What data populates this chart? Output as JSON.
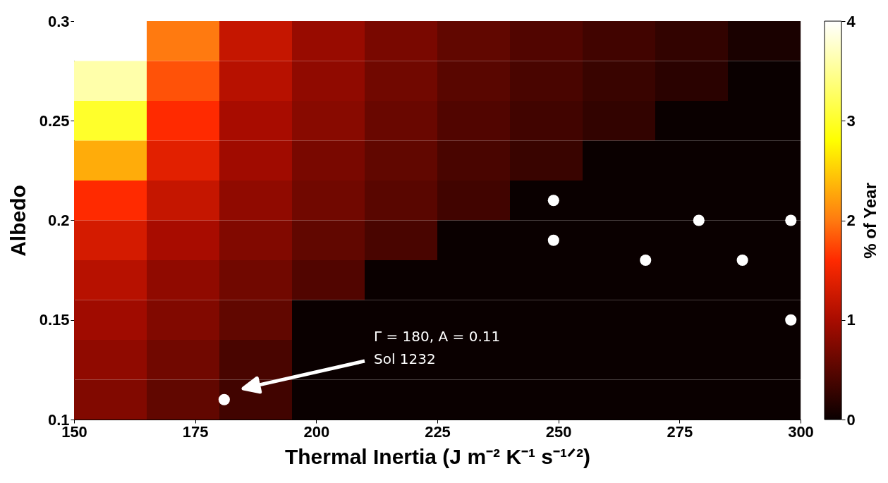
{
  "chart_data": {
    "type": "heatmap",
    "xlabel": "Thermal Inertia (J m⁻² K⁻¹ s⁻¹ᐟ²)",
    "ylabel": "Albedo",
    "clabel": "% of Year",
    "x": [
      157.5,
      172.5,
      187.5,
      202.5,
      217.5,
      232.5,
      247.5,
      262.5,
      277.5,
      292.5
    ],
    "y": [
      0.29,
      0.27,
      0.25,
      0.23,
      0.21,
      0.19,
      0.17,
      0.15,
      0.13,
      0.11
    ],
    "cells": [
      [
        4,
        2,
        1.2,
        0.9,
        0.7,
        0.55,
        0.45,
        0.35,
        0.25,
        0.1
      ],
      [
        3.6,
        1.8,
        1.1,
        0.85,
        0.65,
        0.5,
        0.4,
        0.3,
        0.2,
        0
      ],
      [
        3,
        1.6,
        1,
        0.8,
        0.6,
        0.45,
        0.35,
        0.25,
        0,
        0
      ],
      [
        2.3,
        1.4,
        0.95,
        0.7,
        0.55,
        0.4,
        0.3,
        0,
        0,
        0
      ],
      [
        1.6,
        1.2,
        0.85,
        0.65,
        0.5,
        0.35,
        0,
        0,
        0,
        0
      ],
      [
        1.3,
        1,
        0.75,
        0.55,
        0.4,
        0,
        0,
        0,
        0,
        0
      ],
      [
        1.1,
        0.85,
        0.65,
        0.45,
        0,
        0,
        0,
        0,
        0,
        0
      ],
      [
        0.95,
        0.75,
        0.55,
        0,
        0,
        0,
        0,
        0,
        0,
        0
      ],
      [
        0.85,
        0.65,
        0.4,
        0,
        0,
        0,
        0,
        0,
        0,
        0
      ],
      [
        0.75,
        0.55,
        0.35,
        0,
        0,
        0,
        0,
        0,
        0,
        0
      ]
    ],
    "clim": [
      0,
      4
    ],
    "cticks": [
      0,
      1,
      2,
      3,
      4
    ],
    "xlim": [
      150,
      300
    ],
    "xticks": [
      150,
      175,
      200,
      225,
      250,
      275,
      300
    ],
    "ylim": [
      0.1,
      0.3
    ],
    "yticks": [
      0.1,
      0.15,
      0.2,
      0.25,
      0.3
    ],
    "series": [
      {
        "type": "scatter",
        "color": "#ffffff",
        "x": [
          181,
          249,
          249,
          268,
          279,
          288,
          298,
          298
        ],
        "values": [
          0.11,
          0.21,
          0.19,
          0.18,
          0.2,
          0.18,
          0.2,
          0.15
        ]
      }
    ],
    "marker": "circle",
    "grid": false,
    "annotations": [
      "Γ = 180, A = 0.11\nSol 1232"
    ]
  }
}
